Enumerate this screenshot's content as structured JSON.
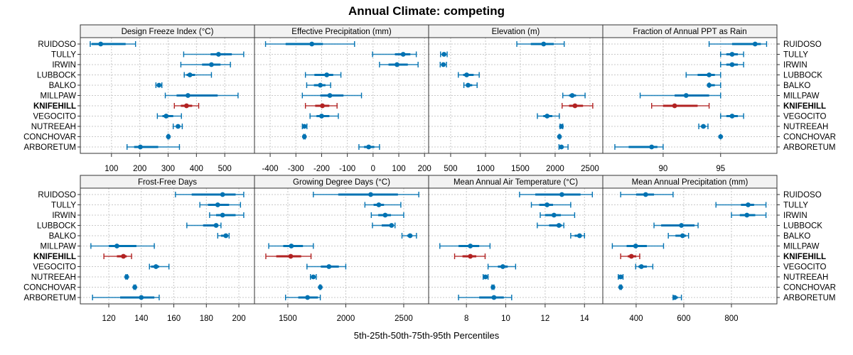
{
  "chart_data": {
    "type": "dotplot-percentile-intervals",
    "title": "Annual Climate: competing",
    "xlabel": "5th-25th-50th-75th-95th Percentiles",
    "ylabel": "",
    "grid": true,
    "highlight_category": "KNIFEHILL",
    "colors": {
      "default": "#0072B2",
      "highlight": "#B22222",
      "strip_bg": "#f2f2f2"
    },
    "categories": [
      "RUIDOSO",
      "TULLY",
      "IRWIN",
      "LUBBOCK",
      "BALKO",
      "MILLPAW",
      "KNIFEHILL",
      "VEGOCITO",
      "NUTREEAH",
      "CONCHOVAR",
      "ARBORETUM"
    ],
    "panels": [
      {
        "name": "Design Freeze Index (°C)",
        "xlim": [
          -10,
          605
        ],
        "ticks": [
          100,
          200,
          300,
          400,
          500
        ],
        "series": [
          {
            "p5": 25,
            "p25": 30,
            "p50": 62,
            "p75": 150,
            "p95": 185
          },
          {
            "p5": 355,
            "p25": 450,
            "p50": 478,
            "p75": 525,
            "p95": 567
          },
          {
            "p5": 345,
            "p25": 420,
            "p50": 453,
            "p75": 485,
            "p95": 520
          },
          {
            "p5": 357,
            "p25": 365,
            "p50": 377,
            "p75": 395,
            "p95": 453
          },
          {
            "p5": 257,
            "p25": 262,
            "p50": 268,
            "p75": 273,
            "p95": 278
          },
          {
            "p5": 290,
            "p25": 330,
            "p50": 370,
            "p75": 475,
            "p95": 547
          },
          {
            "p5": 322,
            "p25": 345,
            "p50": 365,
            "p75": 385,
            "p95": 408
          },
          {
            "p5": 262,
            "p25": 280,
            "p50": 293,
            "p75": 318,
            "p95": 347
          },
          {
            "p5": 318,
            "p25": 328,
            "p50": 335,
            "p75": 342,
            "p95": 350
          },
          {
            "p5": 299,
            "p25": 300,
            "p50": 301,
            "p75": 302,
            "p95": 303
          },
          {
            "p5": 155,
            "p25": 180,
            "p50": 202,
            "p75": 265,
            "p95": 340
          }
        ]
      },
      {
        "name": "Effective Precipitation (mm)",
        "xlim": [
          -461,
          216
        ],
        "ticks": [
          -400,
          -300,
          -200,
          -100,
          0,
          100,
          200
        ],
        "series": [
          {
            "p5": -418,
            "p25": -340,
            "p50": -238,
            "p75": -195,
            "p95": -72
          },
          {
            "p5": -2,
            "p25": 85,
            "p50": 117,
            "p75": 145,
            "p95": 168
          },
          {
            "p5": 25,
            "p25": 60,
            "p50": 93,
            "p75": 135,
            "p95": 175
          },
          {
            "p5": -263,
            "p25": -228,
            "p50": -180,
            "p75": -155,
            "p95": -125
          },
          {
            "p5": -258,
            "p25": -230,
            "p50": -205,
            "p75": -185,
            "p95": -165
          },
          {
            "p5": -275,
            "p25": -205,
            "p50": -168,
            "p75": -115,
            "p95": -45
          },
          {
            "p5": -263,
            "p25": -225,
            "p50": -197,
            "p75": -170,
            "p95": -140
          },
          {
            "p5": -245,
            "p25": -220,
            "p50": -200,
            "p75": -170,
            "p95": -135
          },
          {
            "p5": -275,
            "p25": -272,
            "p50": -267,
            "p75": -262,
            "p95": -257
          },
          {
            "p5": -270,
            "p25": -268,
            "p50": -267,
            "p75": -266,
            "p95": -264
          },
          {
            "p5": -55,
            "p25": -35,
            "p50": -17,
            "p75": 5,
            "p95": 25
          }
        ]
      },
      {
        "name": "Elevation (m)",
        "xlim": [
          184,
          2684
        ],
        "ticks": [
          500,
          1000,
          1500,
          2000,
          2500
        ],
        "series": [
          {
            "p5": 1450,
            "p25": 1650,
            "p50": 1835,
            "p75": 1980,
            "p95": 2130
          },
          {
            "p5": 355,
            "p25": 385,
            "p50": 405,
            "p75": 425,
            "p95": 450
          },
          {
            "p5": 350,
            "p25": 375,
            "p50": 395,
            "p75": 420,
            "p95": 440
          },
          {
            "p5": 610,
            "p25": 680,
            "p50": 730,
            "p75": 830,
            "p95": 910
          },
          {
            "p5": 690,
            "p25": 720,
            "p50": 750,
            "p75": 810,
            "p95": 880
          },
          {
            "p5": 2110,
            "p25": 2200,
            "p50": 2245,
            "p75": 2300,
            "p95": 2430
          },
          {
            "p5": 2100,
            "p25": 2200,
            "p50": 2285,
            "p75": 2400,
            "p95": 2540
          },
          {
            "p5": 1745,
            "p25": 1830,
            "p50": 1885,
            "p75": 1960,
            "p95": 2060
          },
          {
            "p5": 2070,
            "p25": 2080,
            "p50": 2090,
            "p75": 2100,
            "p95": 2110
          },
          {
            "p5": 2055,
            "p25": 2058,
            "p50": 2062,
            "p75": 2066,
            "p95": 2070
          },
          {
            "p5": 2055,
            "p25": 2070,
            "p50": 2090,
            "p75": 2120,
            "p95": 2185
          }
        ]
      },
      {
        "name": "Fraction of Annual PPT as Rain",
        "xlim": [
          84.75,
          99.9
        ],
        "ticks": [
          90,
          95
        ],
        "series": [
          {
            "p5": 94,
            "p25": 96,
            "p50": 98,
            "p75": 98.5,
            "p95": 99
          },
          {
            "p5": 95,
            "p25": 95.5,
            "p50": 96,
            "p75": 96.5,
            "p95": 97
          },
          {
            "p5": 95,
            "p25": 95.5,
            "p50": 96,
            "p75": 96.5,
            "p95": 97
          },
          {
            "p5": 92,
            "p25": 93,
            "p50": 94,
            "p75": 94.5,
            "p95": 95
          },
          {
            "p5": 94,
            "p25": 94,
            "p50": 94,
            "p75": 94.5,
            "p95": 95
          },
          {
            "p5": 88,
            "p25": 91,
            "p50": 92,
            "p75": 94,
            "p95": 95
          },
          {
            "p5": 89,
            "p25": 90,
            "p50": 91,
            "p75": 93,
            "p95": 94
          },
          {
            "p5": 95,
            "p25": 95.5,
            "p50": 96,
            "p75": 96.5,
            "p95": 97
          },
          {
            "p5": 93.1,
            "p25": 93.3,
            "p50": 93.5,
            "p75": 93.7,
            "p95": 93.9
          },
          {
            "p5": 95,
            "p25": 95,
            "p50": 95,
            "p75": 95,
            "p95": 95
          },
          {
            "p5": 85.8,
            "p25": 87,
            "p50": 89,
            "p75": 89.5,
            "p95": 90
          }
        ]
      },
      {
        "name": "Frost-Free Days",
        "xlim": [
          102.5,
          209.6
        ],
        "ticks": [
          120,
          140,
          160,
          180,
          200
        ],
        "series": [
          {
            "p5": 161,
            "p25": 171,
            "p50": 190,
            "p75": 198,
            "p95": 203
          },
          {
            "p5": 176,
            "p25": 181,
            "p50": 187,
            "p75": 194,
            "p95": 201
          },
          {
            "p5": 182,
            "p25": 186,
            "p50": 190,
            "p75": 198,
            "p95": 203
          },
          {
            "p5": 168,
            "p25": 178,
            "p50": 186,
            "p75": 187,
            "p95": 189
          },
          {
            "p5": 187,
            "p25": 189,
            "p50": 192,
            "p75": 193,
            "p95": 194
          },
          {
            "p5": 109,
            "p25": 120,
            "p50": 125,
            "p75": 137,
            "p95": 148
          },
          {
            "p5": 117,
            "p25": 125,
            "p50": 129,
            "p75": 131,
            "p95": 134
          },
          {
            "p5": 145,
            "p25": 146,
            "p50": 149,
            "p75": 151,
            "p95": 157
          },
          {
            "p5": 130.5,
            "p25": 130.7,
            "p50": 131,
            "p75": 131.3,
            "p95": 131.5
          },
          {
            "p5": 135.5,
            "p25": 135.7,
            "p50": 136,
            "p75": 136.3,
            "p95": 136.5
          },
          {
            "p5": 110,
            "p25": 127,
            "p50": 140,
            "p75": 148,
            "p95": 151
          }
        ]
      },
      {
        "name": "Growing Degree Days (°C)",
        "xlim": [
          1212,
          2715
        ],
        "ticks": [
          1500,
          2000,
          2500
        ],
        "series": [
          {
            "p5": 1720,
            "p25": 1935,
            "p50": 2215,
            "p75": 2450,
            "p95": 2630
          },
          {
            "p5": 2165,
            "p25": 2240,
            "p50": 2285,
            "p75": 2330,
            "p95": 2475
          },
          {
            "p5": 2220,
            "p25": 2280,
            "p50": 2340,
            "p75": 2390,
            "p95": 2500
          },
          {
            "p5": 2230,
            "p25": 2310,
            "p50": 2395,
            "p75": 2410,
            "p95": 2425
          },
          {
            "p5": 2485,
            "p25": 2530,
            "p50": 2555,
            "p75": 2575,
            "p95": 2610
          },
          {
            "p5": 1335,
            "p25": 1460,
            "p50": 1530,
            "p75": 1630,
            "p95": 1720
          },
          {
            "p5": 1310,
            "p25": 1400,
            "p50": 1525,
            "p75": 1615,
            "p95": 1700
          },
          {
            "p5": 1665,
            "p25": 1785,
            "p50": 1855,
            "p75": 1940,
            "p95": 2000
          },
          {
            "p5": 1695,
            "p25": 1705,
            "p50": 1720,
            "p75": 1730,
            "p95": 1745
          },
          {
            "p5": 1775,
            "p25": 1778,
            "p50": 1780,
            "p75": 1782,
            "p95": 1785
          },
          {
            "p5": 1480,
            "p25": 1590,
            "p50": 1670,
            "p75": 1760,
            "p95": 1780
          }
        ]
      },
      {
        "name": "Mean Annual Air Temperature (°C)",
        "xlim": [
          6.08,
          14.93
        ],
        "ticks": [
          8,
          10,
          12,
          14
        ],
        "series": [
          {
            "p5": 10.7,
            "p25": 11.5,
            "p50": 12.85,
            "p75": 13.8,
            "p95": 14.4
          },
          {
            "p5": 11.3,
            "p25": 11.7,
            "p50": 12.1,
            "p75": 12.4,
            "p95": 13.3
          },
          {
            "p5": 11.75,
            "p25": 12.0,
            "p50": 12.45,
            "p75": 12.8,
            "p95": 13.5
          },
          {
            "p5": 11.6,
            "p25": 12.2,
            "p50": 12.7,
            "p75": 12.85,
            "p95": 12.95
          },
          {
            "p5": 13.3,
            "p25": 13.5,
            "p50": 13.75,
            "p75": 13.85,
            "p95": 14.0
          },
          {
            "p5": 6.65,
            "p25": 7.6,
            "p50": 8.2,
            "p75": 8.65,
            "p95": 9.2
          },
          {
            "p5": 7.4,
            "p25": 7.8,
            "p50": 8.2,
            "p75": 8.5,
            "p95": 8.95
          },
          {
            "p5": 9.1,
            "p25": 9.6,
            "p50": 9.85,
            "p75": 10.1,
            "p95": 10.5
          },
          {
            "p5": 8.85,
            "p25": 8.9,
            "p50": 8.97,
            "p75": 9.05,
            "p95": 9.1
          },
          {
            "p5": 9.3,
            "p25": 9.32,
            "p50": 9.35,
            "p75": 9.38,
            "p95": 9.4
          },
          {
            "p5": 7.6,
            "p25": 8.65,
            "p50": 9.4,
            "p75": 9.9,
            "p95": 10.3
          }
        ]
      },
      {
        "name": "Mean Annual Precipitation (mm)",
        "xlim": [
          260,
          991
        ],
        "ticks": [
          400,
          600,
          800
        ],
        "series": [
          {
            "p5": 335,
            "p25": 400,
            "p50": 440,
            "p75": 475,
            "p95": 555
          },
          {
            "p5": 735,
            "p25": 840,
            "p50": 870,
            "p75": 895,
            "p95": 945
          },
          {
            "p5": 800,
            "p25": 835,
            "p50": 865,
            "p75": 900,
            "p95": 945
          },
          {
            "p5": 475,
            "p25": 505,
            "p50": 590,
            "p75": 645,
            "p95": 660
          },
          {
            "p5": 535,
            "p25": 565,
            "p50": 595,
            "p75": 610,
            "p95": 620
          },
          {
            "p5": 300,
            "p25": 360,
            "p50": 398,
            "p75": 445,
            "p95": 515
          },
          {
            "p5": 335,
            "p25": 365,
            "p50": 380,
            "p75": 400,
            "p95": 415
          },
          {
            "p5": 398,
            "p25": 410,
            "p50": 422,
            "p75": 445,
            "p95": 470
          },
          {
            "p5": 325,
            "p25": 330,
            "p50": 335,
            "p75": 340,
            "p95": 345
          },
          {
            "p5": 332,
            "p25": 334,
            "p50": 335,
            "p75": 336,
            "p95": 338
          },
          {
            "p5": 555,
            "p25": 558,
            "p50": 562,
            "p75": 575,
            "p95": 590
          }
        ]
      }
    ]
  }
}
